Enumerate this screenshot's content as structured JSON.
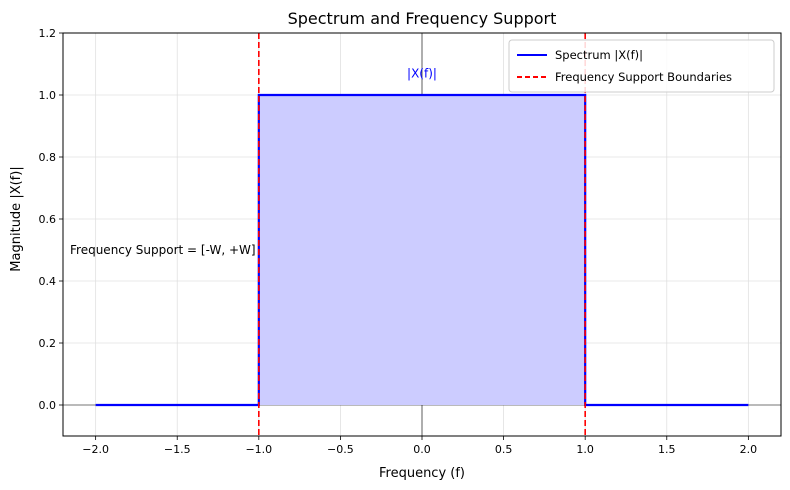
{
  "chart_data": {
    "type": "line",
    "title": "Spectrum and Frequency Support",
    "xlabel": "Frequency (f)",
    "ylabel": "Magnitude |X(f)|",
    "xlim": [
      -2.2,
      2.2
    ],
    "ylim": [
      -0.1,
      1.2
    ],
    "xticks": [
      -2.0,
      -1.5,
      -1.0,
      -0.5,
      0.0,
      0.5,
      1.0,
      1.5,
      2.0
    ],
    "xtick_labels": [
      "−2.0",
      "−1.5",
      "−1.0",
      "−0.5",
      "0.0",
      "0.5",
      "1.0",
      "1.5",
      "2.0"
    ],
    "yticks": [
      0.0,
      0.2,
      0.4,
      0.6,
      0.8,
      1.0,
      1.2
    ],
    "ytick_labels": [
      "0.0",
      "0.2",
      "0.4",
      "0.6",
      "0.8",
      "1.0",
      "1.2"
    ],
    "grid": true,
    "legend_position": "top-right",
    "series": [
      {
        "name": "Spectrum |X(f)|",
        "color": "#0000ff",
        "style": "solid",
        "fill_color": "#ccccff",
        "x": [
          -2.0,
          -1.0,
          -1.0,
          1.0,
          1.0,
          2.0
        ],
        "y": [
          0.0,
          0.0,
          1.0,
          1.0,
          0.0,
          0.0
        ]
      }
    ],
    "vlines": [
      {
        "name": "Frequency Support Boundaries",
        "x": -1.0,
        "color": "#ff0000",
        "style": "dashed"
      },
      {
        "name": "Frequency Support Boundaries",
        "x": 1.0,
        "color": "#ff0000",
        "style": "dashed"
      }
    ],
    "zero_lines": {
      "x": 0.0,
      "y": 0.0,
      "color": "#000000"
    },
    "legend": [
      {
        "label": "Spectrum |X(f)|",
        "color": "#0000ff",
        "style": "solid"
      },
      {
        "label": "Frequency Support Boundaries",
        "color": "#ff0000",
        "style": "dashed"
      }
    ],
    "annotations": [
      {
        "text": "|X(f)|",
        "x": 0.0,
        "y": 1.05,
        "color": "#0000ff"
      },
      {
        "text": "Frequency Support = [-W, +W]",
        "x": -1.5,
        "y": 0.5,
        "color": "#000000"
      }
    ]
  }
}
